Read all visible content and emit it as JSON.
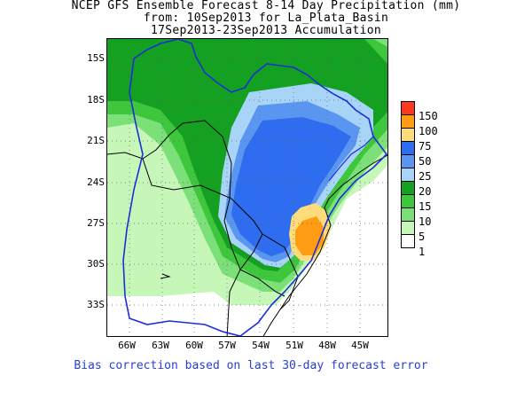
{
  "title": {
    "line1": "NCEP GFS Ensemble Forecast 8-14 Day Precipitation (mm)",
    "line2": "from: 10Sep2013   for La_Plata_Basin",
    "line3": "17Sep2013-23Sep2013 Accumulation"
  },
  "axes": {
    "lat_labels": [
      "15S",
      "18S",
      "21S",
      "24S",
      "27S",
      "30S",
      "33S"
    ],
    "lon_labels": [
      "66W",
      "63W",
      "60W",
      "57W",
      "54W",
      "51W",
      "48W",
      "45W"
    ]
  },
  "legend": {
    "labels": [
      "150",
      "100",
      "75",
      "50",
      "25",
      "20",
      "15",
      "10",
      "5",
      "1"
    ],
    "colors": [
      "#ff3a1c",
      "#ff9c14",
      "#ffdc7a",
      "#2e6cf0",
      "#5a96f0",
      "#a8d4f8",
      "#14a020",
      "#3ec63c",
      "#7ce078",
      "#c6f6b8",
      "#ffffff"
    ]
  },
  "footer": "Bias correction based on last 30-day forecast error"
}
